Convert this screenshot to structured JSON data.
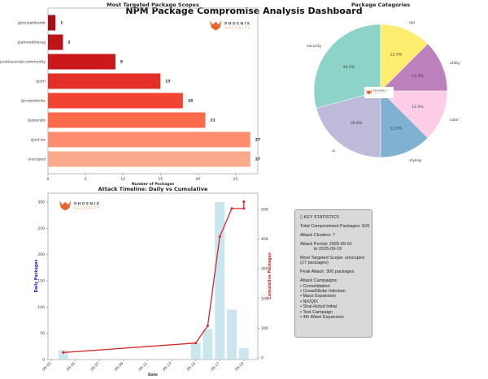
{
  "title": "NPM Package Compromise Analysis Dashboard",
  "logo": {
    "line1": "PHOENIX",
    "line2": "SECURITY",
    "color": "#e8642c"
  },
  "chart_data": [
    {
      "type": "bar",
      "orientation": "horizontal",
      "title": "Most Targeted Package Scopes",
      "xlabel": "Number of Packages",
      "categories": [
        "@teriyakibomb",
        "@ahmedhfarag",
        "@nativescript-community",
        "@ctrl",
        "@crowdstrike",
        "@operato",
        "@art-ws",
        "unscoped"
      ],
      "values": [
        1,
        2,
        9,
        15,
        18,
        21,
        27,
        27
      ],
      "colors": [
        "#a50f15",
        "#bb1419",
        "#cb181d",
        "#e32f27",
        "#f14432",
        "#fb6a4a",
        "#fc8d6e",
        "#fcaa8e"
      ],
      "xticks": [
        0,
        5,
        10,
        15,
        20,
        25
      ],
      "xlim": [
        0,
        28
      ]
    },
    {
      "type": "pie",
      "title": "Package Categories",
      "labels": [
        "security",
        "ui",
        "styling",
        "color",
        "utility",
        "api"
      ],
      "values": [
        29.2,
        20.8,
        12.5,
        12.5,
        12.5,
        12.5
      ],
      "pct_labels": [
        "29.2%",
        "20.8%",
        "12.5%",
        "12.5%",
        "12.5%",
        "12.5%"
      ],
      "colors": [
        "#8dd3c7",
        "#bebada",
        "#80b1d3",
        "#fccde5",
        "#bc80bd",
        "#ffed6f"
      ],
      "startangle": 90
    },
    {
      "type": "bar+line",
      "title": "Attack Timeline: Daily vs Cumulative",
      "xlabel": "Date",
      "ylabel_left": "Daily Packages",
      "ylabel_right": "Cumulative Packages",
      "xticks": [
        "09-03",
        "09-05",
        "09-07",
        "09-09",
        "09-11",
        "09-13",
        "09-15",
        "09-17",
        "09-19"
      ],
      "yticks_left": [
        0,
        50,
        100,
        150,
        200,
        250,
        300
      ],
      "yticks_right": [
        0,
        100,
        200,
        300,
        400,
        500
      ],
      "bars": {
        "x": [
          "09-04",
          "09-15",
          "09-16",
          "09-17",
          "09-18",
          "09-19"
        ],
        "values": [
          18,
          32,
          58,
          300,
          95,
          22
        ],
        "color": "#add8e6"
      },
      "line": {
        "x": [
          "09-04",
          "09-15",
          "09-16",
          "09-17",
          "09-18",
          "09-19",
          "09-19"
        ],
        "values": [
          18,
          50,
          108,
          408,
          503,
          503,
          526
        ],
        "color": "#d62728"
      },
      "ylim_left": [
        0,
        315
      ],
      "ylim_right": [
        0,
        550
      ]
    }
  ],
  "stats": {
    "heading": "▯ KEY STATISTICS",
    "total": "Total Compromised Packages: 526",
    "clusters": "Attack Clusters: 7",
    "period": "Attack Period: 2025-09-01\n           to 2025-09-19",
    "scope": "Most Targeted Scope: unscoped\n(27 packages)",
    "peak": "Peak Attack: 300 packages",
    "campaigns": "Attack Campaigns:\n• Consolidation\n• CrowdStrike Infection\n• Mass Expansion\n• NX/QIX\n• Shai-Hulud Initial\n• Test Campaign\n• 4th Wave Expansion"
  }
}
